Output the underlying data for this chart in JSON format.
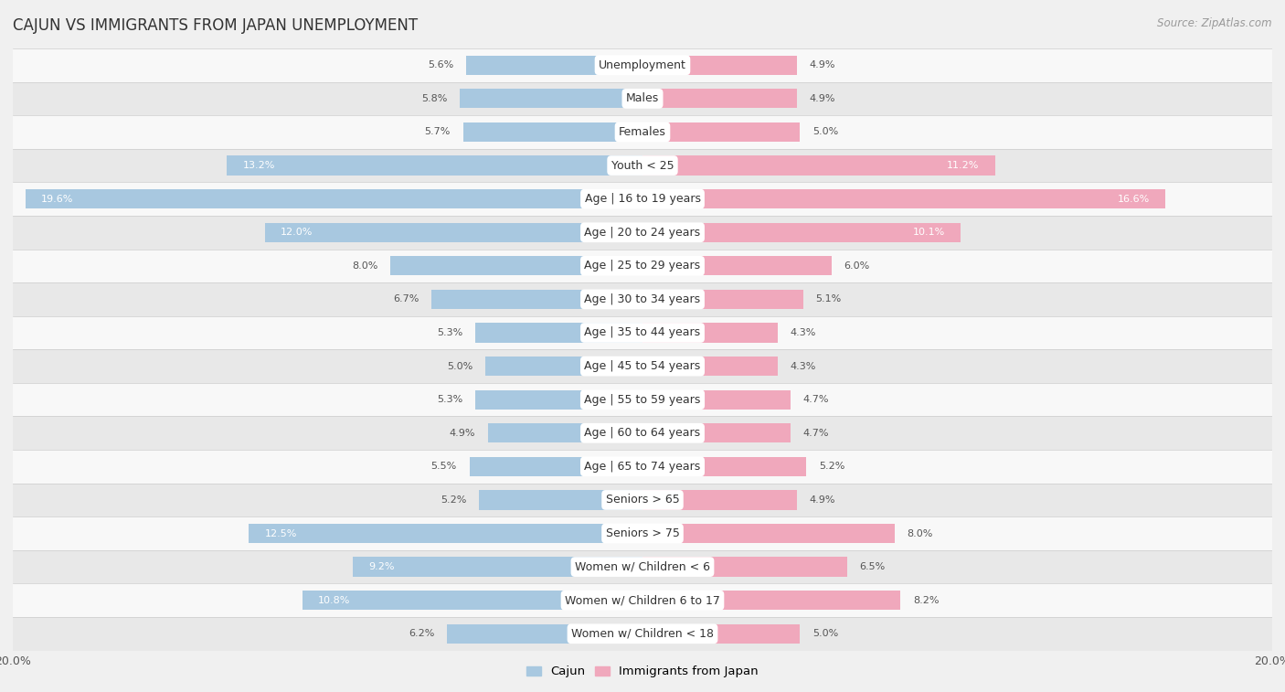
{
  "title": "CAJUN VS IMMIGRANTS FROM JAPAN UNEMPLOYMENT",
  "source": "Source: ZipAtlas.com",
  "categories": [
    "Unemployment",
    "Males",
    "Females",
    "Youth < 25",
    "Age | 16 to 19 years",
    "Age | 20 to 24 years",
    "Age | 25 to 29 years",
    "Age | 30 to 34 years",
    "Age | 35 to 44 years",
    "Age | 45 to 54 years",
    "Age | 55 to 59 years",
    "Age | 60 to 64 years",
    "Age | 65 to 74 years",
    "Seniors > 65",
    "Seniors > 75",
    "Women w/ Children < 6",
    "Women w/ Children 6 to 17",
    "Women w/ Children < 18"
  ],
  "cajun_values": [
    5.6,
    5.8,
    5.7,
    13.2,
    19.6,
    12.0,
    8.0,
    6.7,
    5.3,
    5.0,
    5.3,
    4.9,
    5.5,
    5.2,
    12.5,
    9.2,
    10.8,
    6.2
  ],
  "japan_values": [
    4.9,
    4.9,
    5.0,
    11.2,
    16.6,
    10.1,
    6.0,
    5.1,
    4.3,
    4.3,
    4.7,
    4.7,
    5.2,
    4.9,
    8.0,
    6.5,
    8.2,
    5.0
  ],
  "cajun_color": "#a8c8e0",
  "japan_color": "#f0a8bc",
  "cajun_label": "Cajun",
  "japan_label": "Immigrants from Japan",
  "axis_limit": 20.0,
  "bg_color": "#f0f0f0",
  "row_bg_light": "#f8f8f8",
  "row_bg_dark": "#e8e8e8",
  "title_fontsize": 12,
  "source_fontsize": 8.5,
  "label_fontsize": 9,
  "value_fontsize": 8,
  "legend_fontsize": 9.5,
  "value_color_outside": "#555555",
  "value_color_inside": "#ffffff"
}
